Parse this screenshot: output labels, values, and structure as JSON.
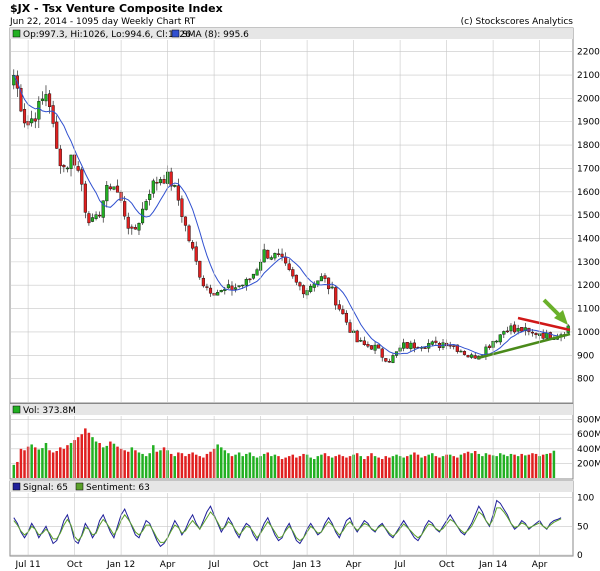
{
  "header": {
    "title": "$JX - Tsx Venture Composite Index",
    "subtitle": "Jun 22, 2014 - 1095 day  Weekly Chart RT",
    "copyright": "(c) Stockscores Analytics"
  },
  "colors": {
    "up": "#22b022",
    "down": "#e02020",
    "sma": "#3050d0",
    "signal": "#20209a",
    "sentiment": "#5aa02a",
    "panel_bg": "#ffffff",
    "grid": "#c8c8c8",
    "strip": "#e6e6e6",
    "trend_red": "#d01818",
    "trend_green": "#4a8a1a",
    "arrow": "#6ab02a"
  },
  "chart_data": [
    {
      "type": "candlestick",
      "legend": [
        {
          "label": "Op:997.3, Hi:1026, Lo:994.6, Cl:1026",
          "marker": "up-candle-square"
        },
        {
          "label": "SMA (8): 995.6",
          "marker": "blue-square"
        }
      ],
      "ylim": [
        700,
        2250
      ],
      "yticks": [
        800,
        900,
        1000,
        1100,
        1200,
        1300,
        1400,
        1500,
        1600,
        1700,
        1800,
        1900,
        2000,
        2100,
        2200
      ],
      "anchors": [
        [
          0,
          2100
        ],
        [
          3,
          1880
        ],
        [
          6,
          1960
        ],
        [
          8,
          2040
        ],
        [
          10,
          1780
        ],
        [
          12,
          1700
        ],
        [
          14,
          1760
        ],
        [
          16,
          1640
        ],
        [
          17,
          1520
        ],
        [
          19,
          1450
        ],
        [
          21,
          1560
        ],
        [
          23,
          1640
        ],
        [
          24,
          1620
        ],
        [
          26,
          1520
        ],
        [
          28,
          1410
        ],
        [
          30,
          1500
        ],
        [
          32,
          1610
        ],
        [
          35,
          1670
        ],
        [
          37,
          1650
        ],
        [
          39,
          1560
        ],
        [
          41,
          1420
        ],
        [
          43,
          1300
        ],
        [
          45,
          1200
        ],
        [
          47,
          1180
        ],
        [
          49,
          1170
        ],
        [
          52,
          1190
        ],
        [
          55,
          1210
        ],
        [
          57,
          1260
        ],
        [
          59,
          1340
        ],
        [
          61,
          1330
        ],
        [
          63,
          1310
        ],
        [
          65,
          1250
        ],
        [
          67,
          1200
        ],
        [
          69,
          1180
        ],
        [
          71,
          1220
        ],
        [
          73,
          1230
        ],
        [
          75,
          1180
        ],
        [
          77,
          1100
        ],
        [
          79,
          1030
        ],
        [
          81,
          960
        ],
        [
          83,
          940
        ],
        [
          85,
          940
        ],
        [
          87,
          900
        ],
        [
          89,
          880
        ],
        [
          90,
          900
        ],
        [
          92,
          940
        ],
        [
          94,
          940
        ],
        [
          96,
          950
        ],
        [
          98,
          950
        ],
        [
          100,
          940
        ],
        [
          102,
          960
        ],
        [
          104,
          940
        ],
        [
          106,
          920
        ],
        [
          108,
          890
        ],
        [
          109,
          900
        ],
        [
          111,
          920
        ],
        [
          113,
          960
        ],
        [
          115,
          990
        ],
        [
          117,
          1030
        ],
        [
          118,
          1000
        ],
        [
          120,
          1010
        ],
        [
          122,
          990
        ],
        [
          124,
          1000
        ],
        [
          126,
          980
        ],
        [
          128,
          990
        ],
        [
          130,
          1000
        ],
        [
          131,
          1026
        ]
      ],
      "x_tick_labels": [
        {
          "i": 4,
          "label": "Jul 11"
        },
        {
          "i": 17,
          "label": "Oct"
        },
        {
          "i": 30,
          "label": "Jan 12"
        },
        {
          "i": 43,
          "label": "Apr"
        },
        {
          "i": 56,
          "label": "Jul"
        },
        {
          "i": 69,
          "label": "Oct"
        },
        {
          "i": 82,
          "label": "Jan 13"
        },
        {
          "i": 95,
          "label": "Apr"
        },
        {
          "i": 108,
          "label": "Jul"
        },
        {
          "i": 121,
          "label": "Oct"
        },
        {
          "i": 134,
          "label": "Jan 14"
        },
        {
          "i": 147,
          "label": "Apr"
        }
      ]
    },
    {
      "type": "bar",
      "legend": [
        {
          "label": "Vol: 373.8M",
          "marker": "green-square"
        }
      ],
      "ylim": [
        0,
        850
      ],
      "yticks": [
        {
          "value": 200,
          "label": "200M"
        },
        {
          "value": 400,
          "label": "400M"
        },
        {
          "value": 600,
          "label": "600M"
        },
        {
          "value": 800,
          "label": "800M"
        }
      ],
      "values": [
        180,
        220,
        400,
        380,
        430,
        460,
        420,
        390,
        410,
        480,
        380,
        350,
        370,
        420,
        400,
        450,
        480,
        520,
        560,
        600,
        680,
        620,
        560,
        500,
        480,
        420,
        440,
        500,
        470,
        430,
        400,
        380,
        360,
        420,
        380,
        350,
        330,
        300,
        340,
        450,
        360,
        380,
        420,
        380,
        330,
        300,
        350,
        340,
        300,
        330,
        350,
        320,
        300,
        280,
        330,
        360,
        400,
        460,
        420,
        380,
        340,
        300,
        320,
        350,
        300,
        330,
        350,
        300,
        280,
        300,
        330,
        350,
        300,
        320,
        300,
        260,
        280,
        300,
        320,
        280,
        300,
        330,
        320,
        280,
        260,
        300,
        320,
        340,
        300,
        280,
        300,
        320,
        300,
        280,
        300,
        320,
        340,
        300,
        260,
        300,
        340,
        300,
        280,
        260,
        300,
        280,
        300,
        320,
        300,
        280,
        300,
        320,
        350,
        320,
        280,
        300,
        320,
        340,
        300,
        280,
        300,
        320,
        320,
        300,
        280,
        320,
        340,
        360,
        340,
        370,
        330,
        300,
        340,
        320,
        310,
        300,
        340,
        320,
        300,
        330,
        320,
        300,
        330,
        310,
        320,
        340,
        330,
        300,
        320,
        330,
        340,
        374
      ]
    },
    {
      "type": "line",
      "legend": [
        {
          "label": "Signal: 65",
          "marker": "navy-square"
        },
        {
          "label": "Sentiment: 63",
          "marker": "green-square"
        }
      ],
      "ylim": [
        0,
        108
      ],
      "yticks": [
        0,
        50,
        100
      ],
      "series": [
        {
          "name": "Signal",
          "values": [
            65,
            55,
            40,
            30,
            40,
            55,
            45,
            30,
            40,
            50,
            35,
            20,
            25,
            40,
            60,
            70,
            50,
            25,
            20,
            35,
            55,
            45,
            30,
            40,
            60,
            70,
            55,
            40,
            30,
            50,
            70,
            80,
            65,
            50,
            35,
            30,
            45,
            60,
            55,
            40,
            25,
            15,
            20,
            30,
            45,
            60,
            50,
            35,
            45,
            60,
            70,
            55,
            45,
            60,
            75,
            85,
            70,
            55,
            40,
            50,
            65,
            55,
            40,
            30,
            45,
            55,
            50,
            35,
            25,
            40,
            55,
            65,
            50,
            35,
            25,
            30,
            45,
            55,
            40,
            25,
            20,
            30,
            45,
            55,
            45,
            35,
            40,
            55,
            65,
            55,
            40,
            30,
            45,
            60,
            65,
            50,
            40,
            50,
            60,
            55,
            45,
            40,
            50,
            55,
            45,
            35,
            30,
            40,
            50,
            60,
            50,
            40,
            30,
            25,
            35,
            50,
            60,
            55,
            45,
            40,
            50,
            60,
            70,
            60,
            50,
            40,
            35,
            45,
            55,
            70,
            85,
            75,
            60,
            50,
            70,
            95,
            90,
            80,
            70,
            55,
            45,
            50,
            60,
            55,
            45,
            50,
            55,
            60,
            50,
            45,
            55,
            60,
            62,
            65
          ]
        },
        {
          "name": "Sentiment",
          "values": [
            60,
            52,
            42,
            35,
            40,
            50,
            45,
            35,
            38,
            45,
            38,
            28,
            28,
            38,
            52,
            62,
            52,
            32,
            25,
            33,
            48,
            45,
            35,
            38,
            52,
            62,
            55,
            45,
            35,
            45,
            60,
            70,
            62,
            52,
            40,
            35,
            42,
            52,
            52,
            42,
            30,
            22,
            22,
            30,
            42,
            52,
            48,
            38,
            42,
            52,
            60,
            52,
            45,
            55,
            65,
            75,
            68,
            57,
            45,
            48,
            58,
            53,
            43,
            35,
            42,
            50,
            48,
            40,
            30,
            38,
            48,
            58,
            50,
            40,
            30,
            32,
            42,
            50,
            42,
            30,
            25,
            30,
            40,
            50,
            45,
            38,
            40,
            50,
            58,
            52,
            43,
            35,
            42,
            52,
            58,
            50,
            43,
            48,
            55,
            52,
            46,
            42,
            48,
            52,
            46,
            38,
            33,
            38,
            46,
            54,
            48,
            42,
            35,
            30,
            35,
            45,
            54,
            52,
            46,
            42,
            46,
            54,
            62,
            58,
            50,
            43,
            38,
            43,
            50,
            62,
            75,
            70,
            60,
            52,
            62,
            82,
            82,
            75,
            66,
            55,
            48,
            50,
            56,
            53,
            47,
            50,
            53,
            56,
            50,
            46,
            52,
            57,
            60,
            63
          ]
        }
      ]
    }
  ]
}
